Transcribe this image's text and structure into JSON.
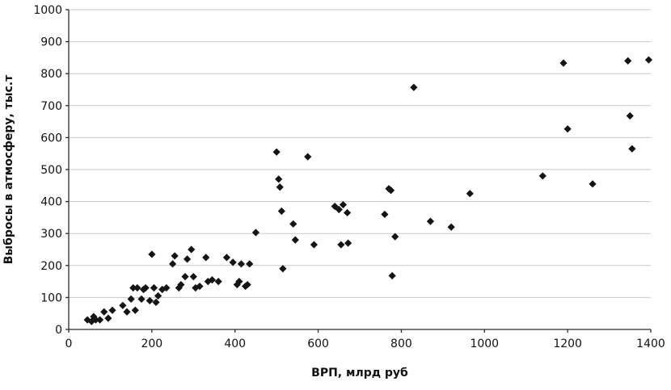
{
  "chart_data": {
    "type": "scatter",
    "title": "",
    "xlabel": "ВРП, млрд руб",
    "ylabel": "Выбросы в атмосферу, тыс.т",
    "xlim": [
      0,
      1400
    ],
    "ylim": [
      0,
      1000
    ],
    "x_ticks": [
      0,
      200,
      400,
      600,
      800,
      1000,
      1200,
      1400
    ],
    "y_ticks": [
      0,
      100,
      200,
      300,
      400,
      500,
      600,
      700,
      800,
      900,
      1000
    ],
    "grid": "horizontal",
    "legend": "none",
    "marker": "diamond",
    "marker_color": "#141414",
    "points": [
      [
        45,
        30
      ],
      [
        55,
        25
      ],
      [
        60,
        40
      ],
      [
        65,
        30
      ],
      [
        75,
        30
      ],
      [
        85,
        55
      ],
      [
        95,
        35
      ],
      [
        105,
        60
      ],
      [
        130,
        75
      ],
      [
        140,
        55
      ],
      [
        150,
        95
      ],
      [
        155,
        130
      ],
      [
        160,
        60
      ],
      [
        165,
        130
      ],
      [
        175,
        95
      ],
      [
        180,
        125
      ],
      [
        185,
        130
      ],
      [
        195,
        90
      ],
      [
        200,
        235
      ],
      [
        205,
        130
      ],
      [
        210,
        85
      ],
      [
        215,
        105
      ],
      [
        225,
        125
      ],
      [
        235,
        130
      ],
      [
        250,
        205
      ],
      [
        255,
        230
      ],
      [
        265,
        130
      ],
      [
        270,
        140
      ],
      [
        280,
        165
      ],
      [
        285,
        220
      ],
      [
        295,
        250
      ],
      [
        300,
        165
      ],
      [
        305,
        130
      ],
      [
        315,
        135
      ],
      [
        330,
        225
      ],
      [
        335,
        150
      ],
      [
        345,
        155
      ],
      [
        360,
        150
      ],
      [
        380,
        225
      ],
      [
        395,
        210
      ],
      [
        405,
        140
      ],
      [
        410,
        150
      ],
      [
        415,
        205
      ],
      [
        425,
        135
      ],
      [
        430,
        140
      ],
      [
        435,
        205
      ],
      [
        450,
        303
      ],
      [
        500,
        555
      ],
      [
        505,
        470
      ],
      [
        508,
        445
      ],
      [
        512,
        370
      ],
      [
        515,
        190
      ],
      [
        540,
        330
      ],
      [
        545,
        280
      ],
      [
        575,
        540
      ],
      [
        590,
        265
      ],
      [
        640,
        385
      ],
      [
        650,
        375
      ],
      [
        655,
        265
      ],
      [
        660,
        390
      ],
      [
        670,
        365
      ],
      [
        672,
        270
      ],
      [
        760,
        360
      ],
      [
        770,
        440
      ],
      [
        775,
        435
      ],
      [
        778,
        168
      ],
      [
        785,
        290
      ],
      [
        830,
        757
      ],
      [
        870,
        338
      ],
      [
        920,
        320
      ],
      [
        965,
        425
      ],
      [
        1140,
        480
      ],
      [
        1190,
        833
      ],
      [
        1200,
        627
      ],
      [
        1260,
        455
      ],
      [
        1345,
        840
      ],
      [
        1350,
        668
      ],
      [
        1355,
        565
      ],
      [
        1395,
        843
      ]
    ]
  }
}
